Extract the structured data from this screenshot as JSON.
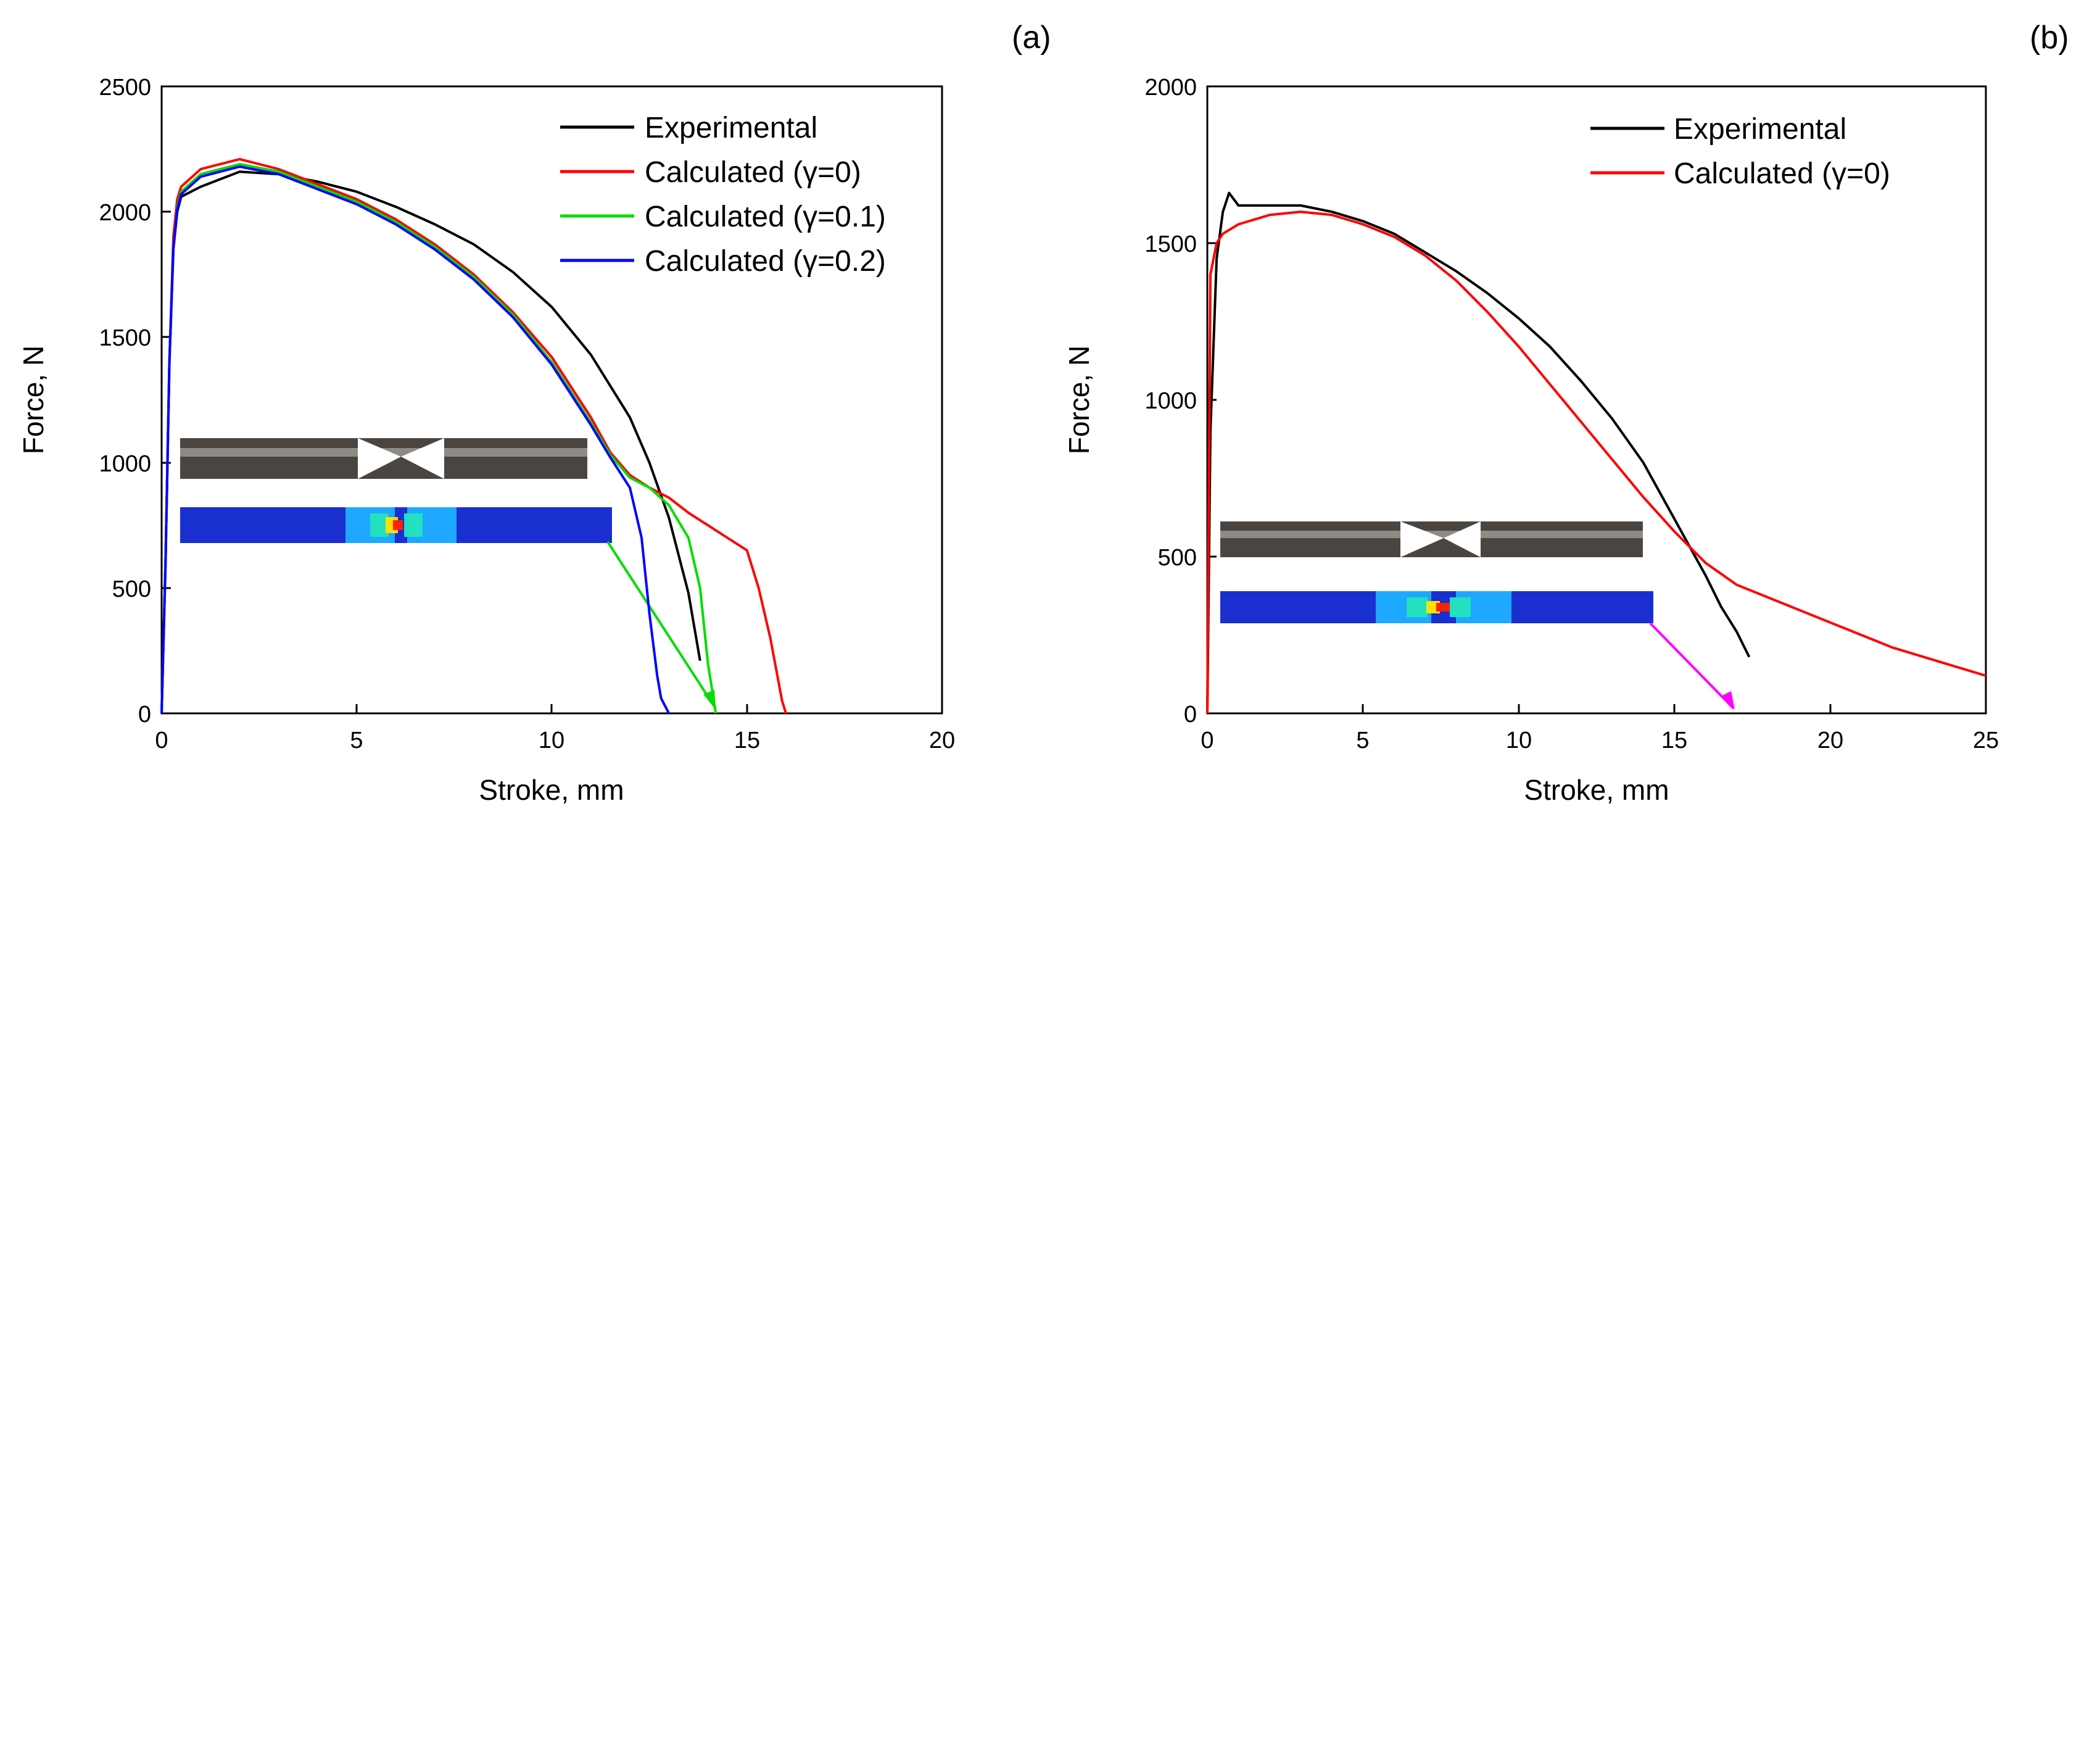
{
  "chart_data": [
    {
      "type": "line",
      "panel_label": "(a)",
      "xlabel": "Stroke, mm",
      "ylabel": "Force, N",
      "xlim": [
        0,
        20
      ],
      "ylim": [
        0,
        2500
      ],
      "xticks": [
        "0",
        "5",
        "10",
        "15",
        "20"
      ],
      "yticks": [
        "0",
        "500",
        "1000",
        "1500",
        "2000",
        "2500"
      ],
      "legend_position": "top-right",
      "series": [
        {
          "name": "Experimental",
          "color": "#000000",
          "x": [
            0,
            0.1,
            0.2,
            0.3,
            0.4,
            0.5,
            1,
            2,
            3,
            4,
            5,
            6,
            7,
            8,
            9,
            10,
            11,
            12,
            12.5,
            13,
            13.5,
            13.8
          ],
          "y": [
            0,
            600,
            1400,
            1850,
            2000,
            2060,
            2100,
            2160,
            2150,
            2120,
            2080,
            2020,
            1950,
            1870,
            1760,
            1620,
            1430,
            1180,
            1000,
            780,
            480,
            210
          ]
        },
        {
          "name": "Calculated (γ=0)",
          "color": "#ff0000",
          "x": [
            0,
            0.1,
            0.2,
            0.3,
            0.4,
            0.5,
            1,
            2,
            3,
            4,
            5,
            6,
            7,
            8,
            9,
            10,
            11,
            11.5,
            12,
            12.5,
            13,
            13.5,
            14,
            14.5,
            15,
            15.3,
            15.6,
            15.9,
            16.0
          ],
          "y": [
            0,
            600,
            1400,
            1900,
            2050,
            2100,
            2170,
            2210,
            2170,
            2110,
            2050,
            1970,
            1870,
            1750,
            1600,
            1420,
            1180,
            1040,
            950,
            900,
            860,
            800,
            750,
            700,
            650,
            500,
            300,
            50,
            0
          ]
        },
        {
          "name": "Calculated (γ=0.1)",
          "color": "#00dd00",
          "x": [
            0,
            0.1,
            0.2,
            0.3,
            0.4,
            0.5,
            1,
            2,
            3,
            4,
            5,
            6,
            7,
            8,
            9,
            10,
            11,
            11.5,
            12,
            12.5,
            13,
            13.5,
            13.8,
            14.0,
            14.2
          ],
          "y": [
            0,
            600,
            1400,
            1850,
            2020,
            2080,
            2150,
            2190,
            2160,
            2100,
            2040,
            1960,
            1860,
            1740,
            1590,
            1400,
            1160,
            1030,
            940,
            900,
            830,
            700,
            500,
            200,
            0
          ]
        },
        {
          "name": "Calculated (γ=0.2)",
          "color": "#0000ff",
          "x": [
            0,
            0.1,
            0.2,
            0.3,
            0.4,
            0.5,
            1,
            2,
            3,
            4,
            5,
            6,
            7,
            8,
            9,
            10,
            11,
            11.5,
            12,
            12.3,
            12.5,
            12.7,
            12.8,
            13.0
          ],
          "y": [
            0,
            600,
            1400,
            1850,
            2010,
            2070,
            2140,
            2180,
            2150,
            2090,
            2030,
            1950,
            1850,
            1730,
            1580,
            1390,
            1150,
            1020,
            900,
            700,
            400,
            150,
            60,
            0
          ]
        }
      ]
    },
    {
      "type": "line",
      "panel_label": "(b)",
      "xlabel": "Stroke, mm",
      "ylabel": "Force, N",
      "xlim": [
        0,
        25
      ],
      "ylim": [
        0,
        2000
      ],
      "xticks": [
        "0",
        "5",
        "10",
        "15",
        "20",
        "25"
      ],
      "yticks": [
        "0",
        "500",
        "1000",
        "1500",
        "2000"
      ],
      "legend_position": "top-right",
      "series": [
        {
          "name": "Experimental",
          "color": "#000000",
          "x": [
            0,
            0.1,
            0.3,
            0.5,
            0.7,
            1,
            2,
            3,
            4,
            5,
            6,
            7,
            8,
            9,
            10,
            11,
            12,
            13,
            14,
            15,
            15.5,
            16,
            16.5,
            17,
            17.4
          ],
          "y": [
            0,
            900,
            1450,
            1600,
            1660,
            1620,
            1620,
            1620,
            1600,
            1570,
            1530,
            1470,
            1410,
            1340,
            1260,
            1170,
            1060,
            940,
            800,
            620,
            530,
            440,
            340,
            260,
            180
          ]
        },
        {
          "name": "Calculated (γ=0)",
          "color": "#ff0000",
          "x": [
            0,
            0.1,
            0.3,
            0.5,
            1,
            2,
            3,
            4,
            5,
            6,
            7,
            8,
            9,
            10,
            11,
            12,
            13,
            14,
            15,
            16,
            17,
            18,
            19,
            20,
            21,
            22,
            23,
            24,
            25
          ],
          "y": [
            0,
            1400,
            1500,
            1530,
            1560,
            1590,
            1600,
            1590,
            1560,
            1520,
            1460,
            1380,
            1280,
            1170,
            1050,
            930,
            810,
            690,
            580,
            480,
            410,
            370,
            330,
            290,
            250,
            210,
            180,
            150,
            120
          ]
        }
      ]
    }
  ]
}
